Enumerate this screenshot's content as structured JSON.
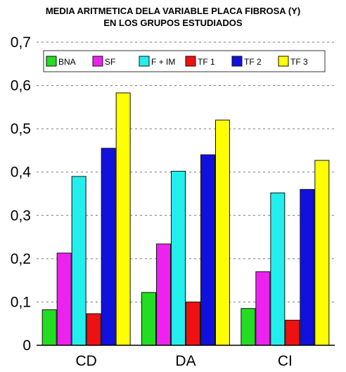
{
  "chart_data": {
    "type": "bar",
    "title": "MEDIA ARITMETICA DELA VARIABLE PLACA FIBROSA (Y)",
    "subtitle": "EN LOS GRUPOS ESTUDIADOS",
    "categories": [
      "CD",
      "DA",
      "CI"
    ],
    "ylim": [
      0,
      0.7
    ],
    "yticks": [
      "0",
      "0,1",
      "0,2",
      "0,3",
      "0,4",
      "0,5",
      "0,6",
      "0,7"
    ],
    "grid": "horizontal dashed",
    "legend_position": "top",
    "series": [
      {
        "name": "BNA",
        "color": "#22dd22",
        "values": [
          0.082,
          0.122,
          0.085
        ]
      },
      {
        "name": "SF",
        "color": "#ee22ee",
        "values": [
          0.213,
          0.234,
          0.17
        ]
      },
      {
        "name": "F + IM",
        "color": "#22eeee",
        "values": [
          0.39,
          0.402,
          0.352
        ]
      },
      {
        "name": "TF 1",
        "color": "#ee1111",
        "values": [
          0.073,
          0.1,
          0.058
        ]
      },
      {
        "name": "TF 2",
        "color": "#1111dd",
        "values": [
          0.455,
          0.44,
          0.36
        ]
      },
      {
        "name": "TF 3",
        "color": "#ffff00",
        "values": [
          0.583,
          0.52,
          0.427
        ]
      }
    ]
  }
}
